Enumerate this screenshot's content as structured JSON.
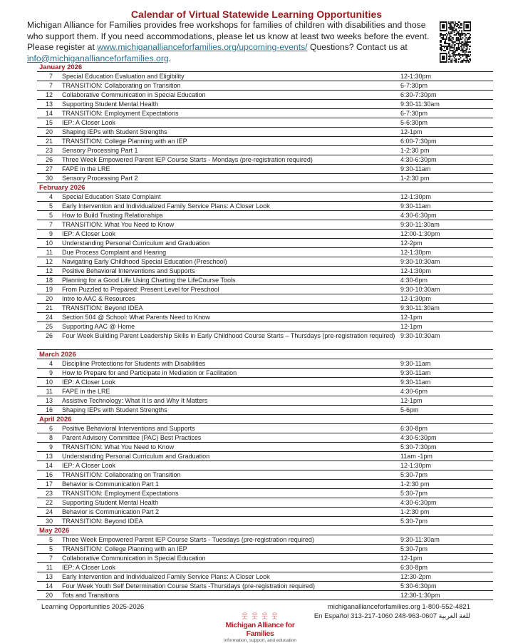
{
  "header": {
    "title": "Calendar of Virtual Statewide Learning Opportunities",
    "intro_text": "Michigan Alliance for Families provides free workshops for families of children with disabilities and those who support them. If you need accommodations, please let us know at least two weeks before the event. Please register at ",
    "register_link": "www.michiganallianceforfamilies.org/upcoming-events/",
    "questions_text": "  Questions? Contact us at ",
    "email_link": "info@michiganallianceforfamilies.org",
    "email_suffix": ".",
    "qr_icon": "qr-code"
  },
  "months": [
    {
      "label": "January 2026",
      "events": [
        [
          "7",
          "Special Education Evaluation and Eligibility",
          "12-1:30pm"
        ],
        [
          "7",
          "TRANSITION: Collaborating on Transition",
          "6-7:30pm"
        ],
        [
          "12",
          "Collaborative Communication in Special Education",
          "6:30-7:30pm"
        ],
        [
          "13",
          "Supporting Student Mental Health",
          "9:30-11:30am"
        ],
        [
          "14",
          "TRANSITION:  Employment Expectations",
          "6-7:30pm"
        ],
        [
          "15",
          "IEP: A Closer Look",
          "5-6:30pm"
        ],
        [
          "20",
          "Shaping IEPs with Student Strengths",
          "12-1pm"
        ],
        [
          "21",
          "TRANSITION: College Planning with an IEP",
          "6:00-7:30pm"
        ],
        [
          "23",
          "Sensory Processing Part 1",
          "1-2:30 pm"
        ],
        [
          "26",
          "Three Week Empowered Parent IEP Course Starts - Mondays (pre-registration required)",
          "4:30-6:30pm"
        ],
        [
          "27",
          "FAPE in the LRE",
          "9:30-11am"
        ],
        [
          "30",
          "Sensory Processing Part 2",
          "1-2:30 pm"
        ]
      ]
    },
    {
      "label": "February 2026",
      "events": [
        [
          "4",
          "Special Education State Complaint",
          "12-1:30pm"
        ],
        [
          "5",
          "Early Intervention and Individualized Family Service Plans: A Closer Look",
          "9:30-11am"
        ],
        [
          "5",
          "How to Build Trusting Relationships",
          "4:30-6:30pm"
        ],
        [
          "7",
          "TRANSITION: What You Need to Know",
          "9:30-11:30am"
        ],
        [
          "9",
          "IEP: A Closer Look",
          "12:00-1:30pm"
        ],
        [
          "10",
          "Understanding Personal Curriculum and Graduation",
          "12-2pm"
        ],
        [
          "11",
          "Due Process Complaint and Hearing",
          "12-1:30pm"
        ],
        [
          "12",
          "Navigating Early Childhood Special Education (Preschool)",
          "9:30-10:30am"
        ],
        [
          "12",
          "Positive Behavioral Interventions and Supports",
          "12-1:30pm"
        ],
        [
          "18",
          "Planning for a Good Life Using Charting the LifeCourse Tools",
          "4:30-6pm"
        ],
        [
          "19",
          "From Puzzled to Prepared: Present Level for Preschool",
          "9:30-10:30am"
        ],
        [
          "20",
          "Intro to AAC & Resources",
          "12-1:30pm"
        ],
        [
          "21",
          "TRANSITION: Beyond IDEA",
          "9:30-11:30am"
        ],
        [
          "24",
          "Section 504 @ School: What Parents Need to Know",
          "12-1pm"
        ],
        [
          "25",
          "Supporting AAC @ Home",
          "12-1pm"
        ],
        [
          "26",
          "Four Week Building Parent Leadership Skills in Early Childhood Course Starts – Thursdays (pre-registration required)",
          "9:30-10:30am"
        ]
      ]
    },
    {
      "label": "March 2026",
      "events": [
        [
          "4",
          "Discipline Protections for Students with Disabilities",
          "9:30-11am"
        ],
        [
          "9",
          "How to Prepare for and Participate in Mediation or Facilitation",
          "9:30-11am"
        ],
        [
          "10",
          "IEP: A Closer Look",
          "9:30-11am"
        ],
        [
          "11",
          "FAPE in the LRE",
          "4:30-6pm"
        ],
        [
          "13",
          "Assistive Technology: What It Is and Why It Matters",
          "12-1pm"
        ],
        [
          "16",
          "Shaping IEPs with Student Strengths",
          "5-6pm"
        ]
      ]
    },
    {
      "label": "April 2026",
      "events": [
        [
          "6",
          "Positive Behavioral Interventions and Supports",
          "6:30-8pm"
        ],
        [
          "8",
          "Parent Advisory Committee (PAC) Best Practices",
          "4:30-5:30pm"
        ],
        [
          "9",
          "TRANSITION: What You Need to Know",
          "5:30-7:30pm"
        ],
        [
          "13",
          "Understanding Personal Curriculum and Graduation",
          "11am -1pm"
        ],
        [
          "14",
          "IEP: A Closer Look",
          "12-1:30pm"
        ],
        [
          "16",
          "TRANSITION: Collaborating on Transition",
          "5:30-7pm"
        ],
        [
          "17",
          "Behavior is Communication Part 1",
          "1-2:30 pm"
        ],
        [
          "23",
          "TRANSITION: Employment Expectations",
          "5:30-7pm"
        ],
        [
          "22",
          "Supporting Student Mental Health",
          "4:30-6:30pm"
        ],
        [
          "24",
          "Behavior is Communication Part 2",
          "1-2:30 pm"
        ],
        [
          "30",
          "TRANSITION: Beyond IDEA",
          "5:30-7pm"
        ]
      ]
    },
    {
      "label": "May 2026",
      "events": [
        [
          "5",
          "Three Week Empowered Parent IEP Course Starts - Tuesdays (pre-registration required)",
          "9:30-11:30am"
        ],
        [
          "5",
          "TRANSITION: College Planning with an IEP",
          "5:30-7pm"
        ],
        [
          "7",
          "Collaborative Communication in Special Education",
          "12-1pm"
        ],
        [
          "11",
          "IEP: A Closer Look",
          "6:30-8pm"
        ],
        [
          "13",
          "Early Intervention and Individualized Family Service Plans: A Closer Look",
          "12:30-2pm"
        ],
        [
          "14",
          "Four Week Youth Self Determination Course Starts -Thursdays (pre-registration required)",
          "5:30-6:30pm"
        ],
        [
          "20",
          "Tots and Transitions",
          "12:30-1:30pm"
        ]
      ]
    }
  ],
  "footer": {
    "left": "Learning Opportunities 2025-2026",
    "contact_line1": "michiganallianceforfamilies.org 1-800-552-4821",
    "contact_line2": "En Español 313-217-1060   248-963-0607 للغة العربية",
    "logo_name": "Michigan Alliance for Families",
    "logo_tagline": "information, support, and education"
  },
  "colors": {
    "accent": "#9b1b1f",
    "link": "#2f6f8f"
  }
}
